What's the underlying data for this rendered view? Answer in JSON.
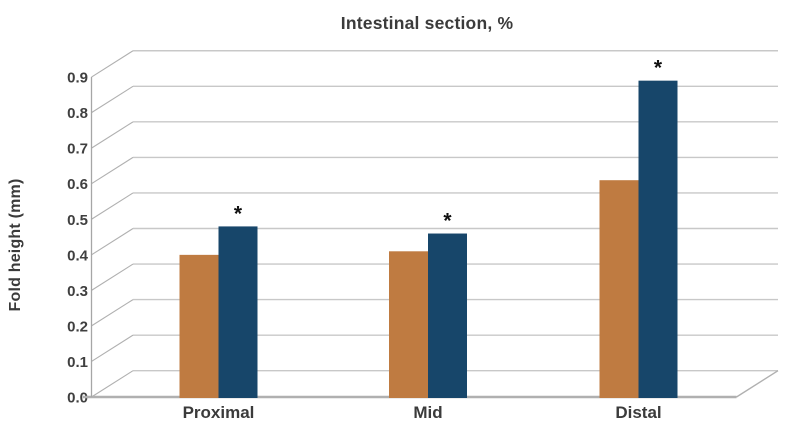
{
  "chart_data": {
    "type": "bar",
    "title": "Intestinal section, %",
    "ylabel": "Fold height (mm)",
    "xlabel": "",
    "categories": [
      "Proximal",
      "Mid",
      "Distal"
    ],
    "series": [
      {
        "name": "orange-series",
        "color": "#bf7b41",
        "values": [
          0.39,
          0.4,
          0.6
        ],
        "markers": [
          "",
          "",
          ""
        ]
      },
      {
        "name": "navy-series",
        "color": "#17466a",
        "values": [
          0.47,
          0.45,
          0.88
        ],
        "markers": [
          "*",
          "*",
          "*"
        ]
      }
    ],
    "ylim": [
      0.0,
      0.9
    ],
    "ytick_step": 0.1,
    "ytick_labels": [
      "0.0",
      "0.1",
      "0.2",
      "0.3",
      "0.4",
      "0.5",
      "0.6",
      "0.7",
      "0.8",
      "0.9"
    ],
    "grid": "horizontal gridlines, pseudo-3D skewed wall on left and floor edge at bottom right",
    "legend": "none",
    "annotation_note": "* marks each navy bar",
    "text_color": "#3b3b3b",
    "tick_text_color": "#3f3f3f",
    "marker_color": "#111111"
  }
}
